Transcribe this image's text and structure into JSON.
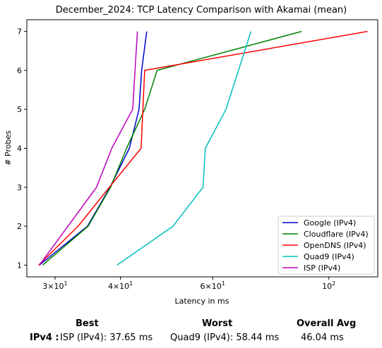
{
  "chart_data": {
    "type": "line",
    "title": "December_2024: TCP Latency Comparison with Akamai (mean)",
    "xlabel": "Latency in ms",
    "ylabel": "# Probes",
    "xscale": "log",
    "xlim": [
      26.5,
      124
    ],
    "ylim": [
      0.7,
      7.3
    ],
    "x_ticks": [
      {
        "value": 30,
        "base": "3",
        "mult": "×",
        "exp_base": "10",
        "exp": "1"
      },
      {
        "value": 40,
        "base": "4",
        "mult": "×",
        "exp_base": "10",
        "exp": "1"
      },
      {
        "value": 60,
        "base": "6",
        "mult": "×",
        "exp_base": "10",
        "exp": "1"
      },
      {
        "value": 100,
        "base": "",
        "mult": "",
        "exp_base": "10",
        "exp": "2"
      }
    ],
    "y_ticks": [
      "1",
      "2",
      "3",
      "4",
      "5",
      "6",
      "7"
    ],
    "legend_position": "lower-right",
    "grid": false,
    "series": [
      {
        "name": "Google (IPv4)",
        "color": "#0000cc",
        "points": [
          [
            28.0,
            1
          ],
          [
            34.6,
            2
          ],
          [
            38.2,
            3
          ],
          [
            41.6,
            4
          ],
          [
            43.4,
            5
          ],
          [
            43.9,
            6
          ],
          [
            44.9,
            7
          ]
        ]
      },
      {
        "name": "Cloudflare (IPv4)",
        "color": "#007f00",
        "points": [
          [
            28.4,
            1
          ],
          [
            34.7,
            2
          ],
          [
            38.3,
            3
          ],
          [
            41.1,
            4
          ],
          [
            44.5,
            5
          ],
          [
            47.0,
            6
          ],
          [
            88.7,
            7
          ]
        ]
      },
      {
        "name": "OpenDNS (IPv4)",
        "color": "#ff0000",
        "points": [
          [
            27.9,
            1
          ],
          [
            33.2,
            2
          ],
          [
            38.1,
            3
          ],
          [
            43.8,
            4
          ],
          [
            44.5,
            6
          ],
          [
            118.5,
            7
          ]
        ]
      },
      {
        "name": "Quad9 (IPv4)",
        "color": "#00bfbf",
        "points": [
          [
            39.4,
            1
          ],
          [
            50.4,
            2
          ],
          [
            57.5,
            3
          ],
          [
            58.1,
            4
          ],
          [
            63.6,
            5
          ],
          [
            71.0,
            7
          ]
        ]
      },
      {
        "name": "ISP (IPv4)",
        "color": "#bf00bf",
        "points": [
          [
            28.0,
            1
          ],
          [
            36.0,
            3
          ],
          [
            38.5,
            4
          ],
          [
            42.2,
            5
          ],
          [
            43.1,
            7
          ]
        ]
      }
    ]
  },
  "summary": {
    "best_header": "Best",
    "worst_header": "Worst",
    "avg_header": "Overall Avg",
    "row_label": "IPv4 :",
    "best_value": "ISP (IPv4): 37.65 ms",
    "worst_value": "Quad9 (IPv4): 58.44 ms",
    "avg_value": "46.04 ms"
  }
}
